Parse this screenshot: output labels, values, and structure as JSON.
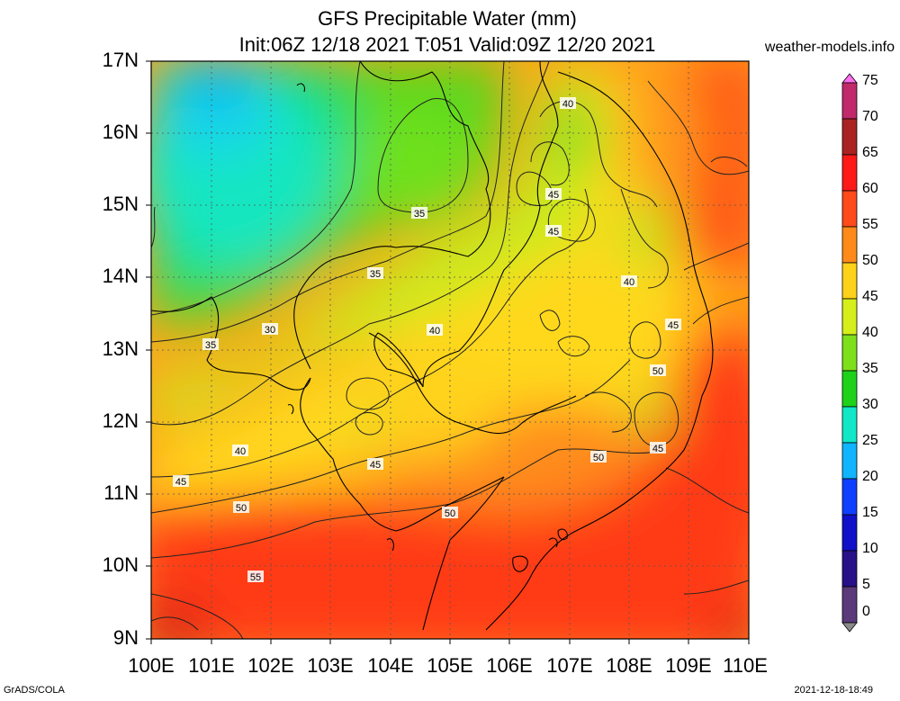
{
  "title": {
    "line1": "GFS Precipitable Water (mm)",
    "line2": "Init:06Z 12/18 2021 T:051 Valid:09Z 12/20 2021"
  },
  "site": "weather-models.info",
  "footer": {
    "left": "GrADS/COLA",
    "right": "2021-12-18-18:49"
  },
  "y_axis": [
    "17N",
    "16N",
    "15N",
    "14N",
    "13N",
    "12N",
    "11N",
    "10N",
    "9N"
  ],
  "x_axis": [
    "100E",
    "101E",
    "102E",
    "103E",
    "104E",
    "105E",
    "106E",
    "107E",
    "108E",
    "109E",
    "110E"
  ],
  "colorbar": {
    "labels": [
      "75",
      "70",
      "65",
      "60",
      "55",
      "50",
      "45",
      "40",
      "35",
      "30",
      "25",
      "20",
      "15",
      "10",
      "5",
      "0"
    ],
    "colors": [
      "#ff6ef0",
      "#c02a6a",
      "#aa2222",
      "#ff1a1a",
      "#ff4a1a",
      "#ff8a1a",
      "#ffd21a",
      "#d6ee1a",
      "#7ee01a",
      "#1ed21a",
      "#10e8c8",
      "#10b4ff",
      "#1040ff",
      "#1010c8",
      "#281088",
      "#5a3a7a",
      "#8a8a8a"
    ]
  },
  "contour_labels": [
    "40",
    "45",
    "45",
    "35",
    "35",
    "30",
    "35",
    "40",
    "40",
    "45",
    "50",
    "45",
    "40",
    "45",
    "50",
    "50",
    "50",
    "55"
  ]
}
